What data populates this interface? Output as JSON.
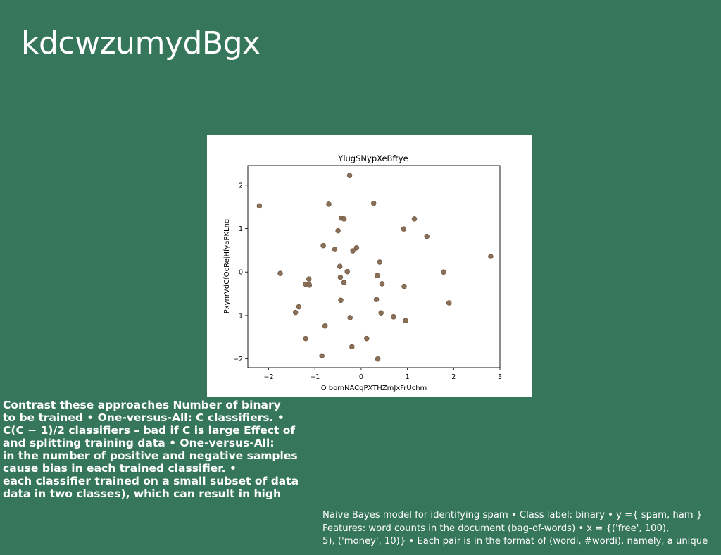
{
  "slide": {
    "title": "kdcwzumydBgx",
    "body_lines": [
      "Contrast these approaches Number of binary",
      "to be trained • One-versus-All: C classifiers. •",
      "C(C − 1)/2 classifiers – bad if C is large Effect of",
      "and splitting training data • One-versus-All:",
      "in the number of positive and negative samples",
      "cause bias in each trained classifier. •",
      "each classifier trained on a small subset of data",
      "data in two classes), which can result in high"
    ],
    "side_lines": [
      "Naive Bayes model for identifying spam • Class label: binary • y ={ spam, ham }",
      "Features: word counts in the document (bag-of-words) • x = {('free', 100),",
      "5), ('money', 10)} • Each pair is in the format of (wordi, #wordi), namely, a unique"
    ]
  },
  "colors": {
    "background": "#36765a",
    "marker_fill": "#8b6f56",
    "marker_stroke": "#6b5440"
  },
  "chart_data": {
    "type": "scatter",
    "title": "YlugSNypXeBftye",
    "xlabel": "O bomNACqPXTHZmJxFrUchm",
    "ylabel": "PxynrVdCfOcRejHfyaPKLng",
    "xlim": [
      -2.45,
      3.0
    ],
    "ylim": [
      -2.2,
      2.45
    ],
    "xticks": [
      -2,
      -1,
      0,
      1,
      2,
      3
    ],
    "yticks": [
      -2,
      -1,
      0,
      1,
      2
    ],
    "grid": false,
    "points": [
      {
        "x": -2.2,
        "y": 1.52
      },
      {
        "x": -1.75,
        "y": -0.03
      },
      {
        "x": -1.42,
        "y": -0.93
      },
      {
        "x": -1.35,
        "y": -0.8
      },
      {
        "x": -1.2,
        "y": -0.28
      },
      {
        "x": -1.2,
        "y": -1.53
      },
      {
        "x": -1.13,
        "y": -0.16
      },
      {
        "x": -1.12,
        "y": -0.3
      },
      {
        "x": -0.85,
        "y": -1.93
      },
      {
        "x": -0.82,
        "y": 0.61
      },
      {
        "x": -0.78,
        "y": -1.24
      },
      {
        "x": -0.7,
        "y": 1.56
      },
      {
        "x": -0.57,
        "y": 0.52
      },
      {
        "x": -0.5,
        "y": 0.95
      },
      {
        "x": -0.46,
        "y": 0.13
      },
      {
        "x": -0.45,
        "y": -0.12
      },
      {
        "x": -0.44,
        "y": -0.65
      },
      {
        "x": -0.43,
        "y": 1.24
      },
      {
        "x": -0.37,
        "y": 1.22
      },
      {
        "x": -0.37,
        "y": -0.24
      },
      {
        "x": -0.3,
        "y": 0.01
      },
      {
        "x": -0.25,
        "y": 2.22
      },
      {
        "x": -0.24,
        "y": -1.05
      },
      {
        "x": -0.2,
        "y": -1.72
      },
      {
        "x": -0.18,
        "y": 0.49
      },
      {
        "x": -0.1,
        "y": 0.56
      },
      {
        "x": 0.12,
        "y": -1.53
      },
      {
        "x": 0.27,
        "y": 1.58
      },
      {
        "x": 0.33,
        "y": -0.63
      },
      {
        "x": 0.35,
        "y": -0.08
      },
      {
        "x": 0.36,
        "y": -2.0
      },
      {
        "x": 0.4,
        "y": 0.23
      },
      {
        "x": 0.43,
        "y": -0.94
      },
      {
        "x": 0.45,
        "y": -0.27
      },
      {
        "x": 0.7,
        "y": -1.03
      },
      {
        "x": 0.92,
        "y": 0.99
      },
      {
        "x": 0.93,
        "y": -0.33
      },
      {
        "x": 0.96,
        "y": -1.12
      },
      {
        "x": 1.15,
        "y": 1.22
      },
      {
        "x": 1.42,
        "y": 0.82
      },
      {
        "x": 1.78,
        "y": 0.0
      },
      {
        "x": 1.9,
        "y": -0.71
      },
      {
        "x": 2.8,
        "y": 0.36
      }
    ]
  }
}
